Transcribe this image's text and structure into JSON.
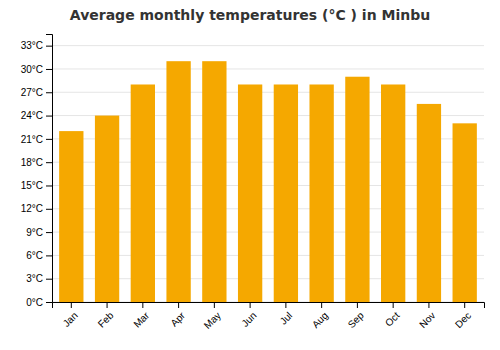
{
  "chart_data": {
    "type": "bar",
    "title": "Average monthly temperatures (°C ) in Minbu",
    "categories": [
      "Jan",
      "Feb",
      "Mar",
      "Apr",
      "May",
      "Jun",
      "Jul",
      "Aug",
      "Sep",
      "Oct",
      "Nov",
      "Dec"
    ],
    "values": [
      22,
      24,
      28,
      31,
      31,
      28,
      28,
      28,
      29,
      28,
      25.5,
      23
    ],
    "color": "#F5A800",
    "ylim": [
      0,
      34.5
    ],
    "yticks": [
      {
        "value": 0,
        "label": "0°C"
      },
      {
        "value": 3,
        "label": "3°C"
      },
      {
        "value": 6,
        "label": "6°C"
      },
      {
        "value": 9,
        "label": "9°C"
      },
      {
        "value": 12,
        "label": "12°C"
      },
      {
        "value": 15,
        "label": "15°C"
      },
      {
        "value": 18,
        "label": "18°C"
      },
      {
        "value": 21,
        "label": "21°C"
      },
      {
        "value": 24,
        "label": "24°C"
      },
      {
        "value": 27,
        "label": "27°C"
      },
      {
        "value": 30,
        "label": "30°C"
      },
      {
        "value": 33,
        "label": "33°C"
      }
    ],
    "grid": true
  }
}
